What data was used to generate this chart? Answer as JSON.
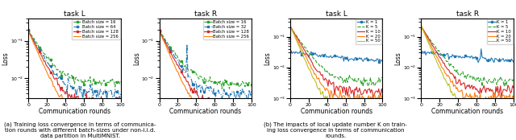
{
  "figure_width": 6.4,
  "figure_height": 1.74,
  "dpi": 100,
  "n_rounds": 101,
  "subplot_titles": [
    "task L",
    "task R",
    "task L",
    "task R"
  ],
  "xlabel": "Communication rounds",
  "ylabel": "Loss",
  "batch_legend_L": [
    "Batch size = 16",
    "Batch size = 64",
    "Batch size = 128",
    "Batch size = 256"
  ],
  "batch_legend_R": [
    "Batch size = 16",
    "Batch size = 32",
    "Batch size = 128",
    "Batch size = 256"
  ],
  "batch_colors": [
    "#2ca02c",
    "#1f77b4",
    "#d62728",
    "#ff7f0e"
  ],
  "k_legend": [
    "K = 1",
    "K = 5",
    "K = 10",
    "K = 20",
    "K = 50"
  ],
  "k_colors": [
    "#1f77b4",
    "#2ca02c",
    "#d62728",
    "#ff7f0e",
    "#bcbd22"
  ],
  "caption_a": "(a) Training loss convergence in terms of communica-\ntion rounds with different batch-sizes under non-i.i.d.\ndata partition in MultiMNIST.",
  "caption_b": "(b) The impacts of local update number K on train-\ning loss convergence in terms of communication\nrounds.",
  "batch_ylim": [
    0.003,
    0.4
  ],
  "k_ylim": [
    0.001,
    0.4
  ]
}
